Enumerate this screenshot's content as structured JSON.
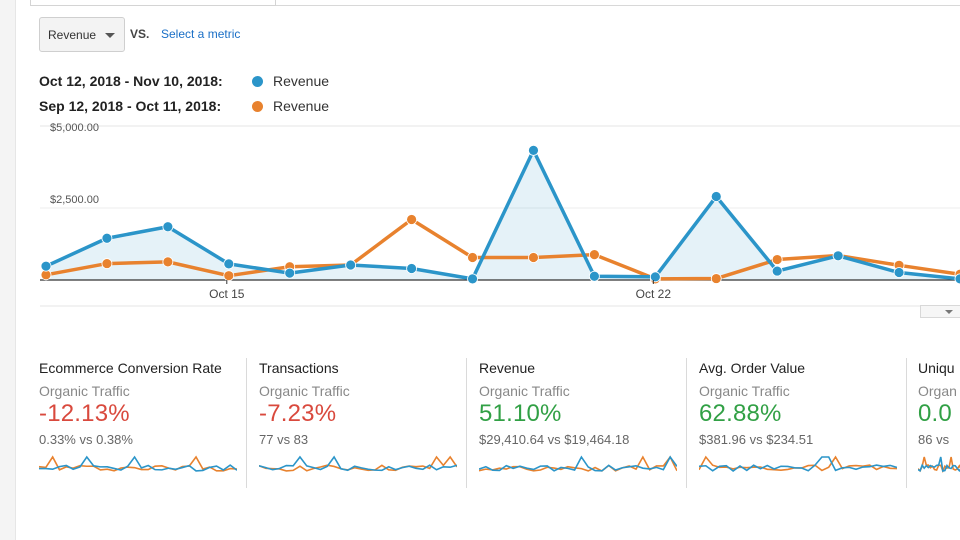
{
  "metric_picker": {
    "selected": "Revenue",
    "vs_label": "VS.",
    "select_metric": "Select a metric"
  },
  "legend": [
    {
      "range": "Oct 12, 2018 - Nov 10, 2018:",
      "label": "Revenue",
      "color": "#2b95c9"
    },
    {
      "range": "Sep 12, 2018 - Oct 11, 2018:",
      "label": "Revenue",
      "color": "#e8822e"
    }
  ],
  "chart_data": {
    "type": "line",
    "y_ticks": [
      "$5,000.00",
      "$2,500.00"
    ],
    "ylim": [
      0,
      5000
    ],
    "x_tick_labels": [
      {
        "index": 3,
        "label": "Oct 15"
      },
      {
        "index": 10,
        "label": "Oct 22"
      }
    ],
    "series": [
      {
        "color": "#2b95c9",
        "filled": true,
        "values": [
          480,
          1450,
          1850,
          560,
          240,
          520,
          400,
          40,
          4500,
          130,
          110,
          2900,
          310,
          840,
          260,
          40
        ]
      },
      {
        "color": "#e8822e",
        "filled": false,
        "values": [
          180,
          570,
          630,
          150,
          460,
          520,
          2100,
          780,
          780,
          880,
          40,
          50,
          710,
          850,
          510,
          200
        ]
      }
    ]
  },
  "scorecards": [
    {
      "title": "Ecommerce Conversion Rate",
      "segment": "Organic Traffic",
      "change": "-12.13%",
      "trend": "neg",
      "compare": "0.33% vs 0.38%"
    },
    {
      "title": "Transactions",
      "segment": "Organic Traffic",
      "change": "-7.23%",
      "trend": "neg",
      "compare": "77 vs 83"
    },
    {
      "title": "Revenue",
      "segment": "Organic Traffic",
      "change": "51.10%",
      "trend": "pos",
      "compare": "$29,410.64 vs $19,464.18"
    },
    {
      "title": "Avg. Order Value",
      "segment": "Organic Traffic",
      "change": "62.88%",
      "trend": "pos",
      "compare": "$381.96 vs $234.51"
    },
    {
      "title": "Uniqu",
      "segment": "Organ",
      "change": "0.0",
      "trend": "pos",
      "compare": "86 vs"
    }
  ]
}
